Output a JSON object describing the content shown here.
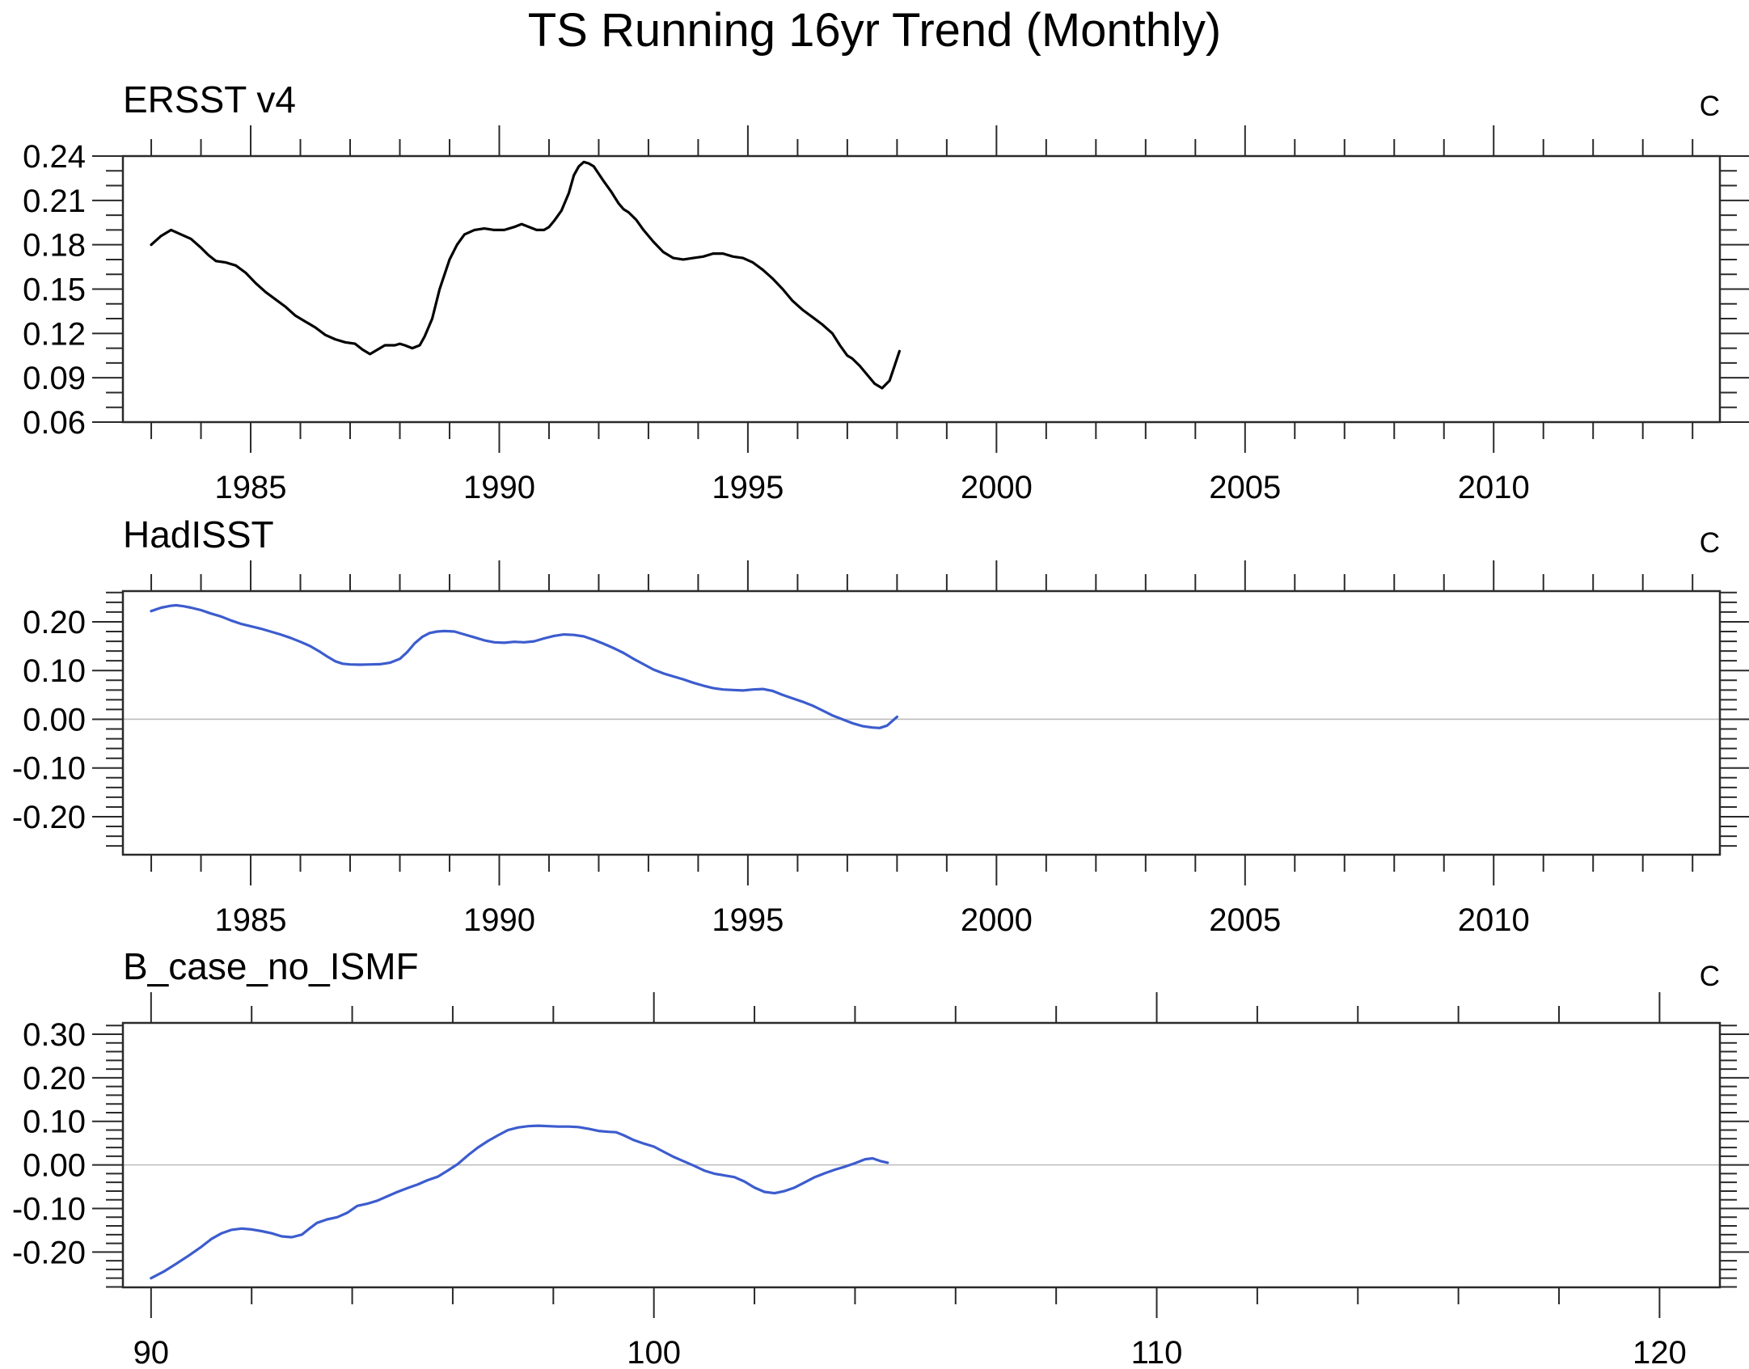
{
  "title": "TS Running 16yr Trend (Monthly)",
  "unit_label": "C",
  "colors": {
    "obs_line_black": "#000000",
    "blue_line": "#3C5CCE",
    "zero_line_gray": "#bcbcbc",
    "axis_color": "#2a2a2a"
  },
  "chart_data": [
    {
      "type": "line",
      "title": "ERSST v4",
      "unit": "C",
      "line_color": "#000000",
      "legend_position": "none",
      "grid": "zero-line-off",
      "x_domain": [
        1982.43,
        2014.55
      ],
      "y_domain": [
        0.06,
        0.24
      ],
      "x_tick_values": [
        1985,
        1990,
        1995,
        2000,
        2005,
        2010
      ],
      "x_tick_labels": [
        "1985",
        "1990",
        "1995",
        "2000",
        "2005",
        "2010"
      ],
      "x_minor_step": 1,
      "x_major_every": 5,
      "y_tick_values": [
        0.06,
        0.09,
        0.12,
        0.15,
        0.18,
        0.21,
        0.24
      ],
      "y_tick_labels": [
        "0.06",
        "0.09",
        "0.12",
        "0.15",
        "0.18",
        "0.21",
        "0.24"
      ],
      "y_minor_step": 0.01,
      "zero_line": false,
      "series": {
        "name": "ERSST v4 16yr running trend",
        "x": [
          1983.0,
          1983.2,
          1983.4,
          1983.6,
          1983.8,
          1984.0,
          1984.15,
          1984.3,
          1984.5,
          1984.7,
          1984.9,
          1985.1,
          1985.3,
          1985.5,
          1985.7,
          1985.9,
          1986.1,
          1986.3,
          1986.5,
          1986.7,
          1986.9,
          1987.1,
          1987.25,
          1987.4,
          1987.5,
          1987.7,
          1987.9,
          1988.0,
          1988.1,
          1988.25,
          1988.4,
          1988.5,
          1988.65,
          1988.8,
          1989.0,
          1989.15,
          1989.3,
          1989.5,
          1989.7,
          1989.9,
          1990.1,
          1990.3,
          1990.45,
          1990.6,
          1990.75,
          1990.9,
          1991.0,
          1991.1,
          1991.25,
          1991.4,
          1991.5,
          1991.6,
          1991.7,
          1991.8,
          1991.9,
          1992.0,
          1992.1,
          1992.25,
          1992.4,
          1992.5,
          1992.6,
          1992.75,
          1992.9,
          1993.1,
          1993.3,
          1993.5,
          1993.7,
          1993.9,
          1994.1,
          1994.3,
          1994.5,
          1994.7,
          1994.9,
          1995.1,
          1995.3,
          1995.5,
          1995.7,
          1995.9,
          1996.1,
          1996.3,
          1996.5,
          1996.7,
          1996.85,
          1997.0,
          1997.1,
          1997.25,
          1997.4,
          1997.55,
          1997.7,
          1997.85,
          1997.95,
          1998.05
        ],
        "y": [
          0.18,
          0.186,
          0.19,
          0.187,
          0.184,
          0.178,
          0.173,
          0.169,
          0.168,
          0.166,
          0.161,
          0.154,
          0.148,
          0.143,
          0.138,
          0.132,
          0.128,
          0.124,
          0.119,
          0.116,
          0.114,
          0.113,
          0.109,
          0.106,
          0.108,
          0.112,
          0.112,
          0.113,
          0.112,
          0.11,
          0.112,
          0.118,
          0.13,
          0.15,
          0.17,
          0.18,
          0.187,
          0.19,
          0.191,
          0.19,
          0.19,
          0.192,
          0.194,
          0.192,
          0.19,
          0.19,
          0.192,
          0.196,
          0.203,
          0.215,
          0.227,
          0.233,
          0.236,
          0.235,
          0.233,
          0.228,
          0.223,
          0.216,
          0.208,
          0.204,
          0.202,
          0.197,
          0.19,
          0.182,
          0.175,
          0.171,
          0.17,
          0.171,
          0.172,
          0.174,
          0.174,
          0.172,
          0.171,
          0.168,
          0.163,
          0.157,
          0.15,
          0.142,
          0.136,
          0.131,
          0.126,
          0.12,
          0.112,
          0.105,
          0.103,
          0.098,
          0.092,
          0.086,
          0.083,
          0.088,
          0.098,
          0.108
        ]
      }
    },
    {
      "type": "line",
      "title": "HadISST",
      "unit": "C",
      "line_color": "#3C5CCE",
      "legend_position": "none",
      "grid": "zero-line-on",
      "x_domain": [
        1982.43,
        2014.55
      ],
      "y_domain": [
        -0.278,
        0.263
      ],
      "x_tick_values": [
        1985,
        1990,
        1995,
        2000,
        2005,
        2010
      ],
      "x_tick_labels": [
        "1985",
        "1990",
        "1995",
        "2000",
        "2005",
        "2010"
      ],
      "x_minor_step": 1,
      "x_major_every": 5,
      "y_tick_values": [
        -0.2,
        -0.1,
        0.0,
        0.1,
        0.2
      ],
      "y_tick_labels": [
        "-0.20",
        "-0.10",
        "0.00",
        "0.10",
        "0.20"
      ],
      "y_minor_step": 0.02,
      "zero_line": true,
      "series": {
        "name": "HadISST 16yr running trend",
        "x": [
          1983.0,
          1983.2,
          1983.4,
          1983.5,
          1983.65,
          1983.8,
          1984.0,
          1984.2,
          1984.4,
          1984.6,
          1984.8,
          1985.0,
          1985.2,
          1985.4,
          1985.6,
          1985.8,
          1986.0,
          1986.2,
          1986.4,
          1986.55,
          1986.7,
          1986.85,
          1987.0,
          1987.2,
          1987.4,
          1987.6,
          1987.8,
          1988.0,
          1988.15,
          1988.3,
          1988.45,
          1988.6,
          1988.75,
          1988.9,
          1989.1,
          1989.3,
          1989.5,
          1989.7,
          1989.9,
          1990.1,
          1990.3,
          1990.5,
          1990.7,
          1990.9,
          1991.1,
          1991.3,
          1991.5,
          1991.7,
          1991.9,
          1992.1,
          1992.3,
          1992.5,
          1992.7,
          1992.9,
          1993.1,
          1993.3,
          1993.5,
          1993.7,
          1993.9,
          1994.1,
          1994.3,
          1994.5,
          1994.7,
          1994.9,
          1995.1,
          1995.3,
          1995.5,
          1995.7,
          1995.9,
          1996.1,
          1996.3,
          1996.5,
          1996.7,
          1996.9,
          1997.1,
          1997.3,
          1997.5,
          1997.65,
          1997.8,
          1997.9,
          1998.0
        ],
        "y": [
          0.222,
          0.229,
          0.233,
          0.234,
          0.232,
          0.229,
          0.224,
          0.217,
          0.211,
          0.203,
          0.196,
          0.191,
          0.186,
          0.18,
          0.174,
          0.167,
          0.159,
          0.15,
          0.138,
          0.128,
          0.119,
          0.114,
          0.1125,
          0.112,
          0.1125,
          0.113,
          0.116,
          0.124,
          0.138,
          0.156,
          0.169,
          0.177,
          0.18,
          0.181,
          0.18,
          0.174,
          0.168,
          0.162,
          0.158,
          0.157,
          0.159,
          0.158,
          0.16,
          0.166,
          0.171,
          0.174,
          0.173,
          0.17,
          0.163,
          0.155,
          0.146,
          0.136,
          0.124,
          0.113,
          0.102,
          0.094,
          0.088,
          0.082,
          0.075,
          0.069,
          0.064,
          0.061,
          0.06,
          0.059,
          0.061,
          0.062,
          0.058,
          0.05,
          0.043,
          0.036,
          0.028,
          0.018,
          0.008,
          0.0,
          -0.008,
          -0.014,
          -0.017,
          -0.018,
          -0.013,
          -0.004,
          0.005
        ]
      }
    },
    {
      "type": "line",
      "title": "B_case_no_ISMF",
      "unit": "C",
      "line_color": "#3C5CCE",
      "legend_position": "none",
      "grid": "zero-line-on",
      "x_domain": [
        89.44,
        121.2
      ],
      "y_domain": [
        -0.281,
        0.326
      ],
      "x_tick_values": [
        90,
        100,
        110,
        120
      ],
      "x_tick_labels": [
        "90",
        "100",
        "110",
        "120"
      ],
      "x_minor_step": 2,
      "x_major_every": 10,
      "y_tick_values": [
        -0.2,
        -0.1,
        0.0,
        0.1,
        0.2,
        0.3
      ],
      "y_tick_labels": [
        "-0.20",
        "-0.10",
        "0.00",
        "0.10",
        "0.20",
        "0.30"
      ],
      "y_minor_step": 0.02,
      "zero_line": true,
      "series": {
        "name": "B_case_no_ISMF 16yr running trend",
        "x": [
          90.0,
          90.25,
          90.5,
          90.75,
          91.0,
          91.2,
          91.4,
          91.6,
          91.8,
          92.0,
          92.2,
          92.4,
          92.6,
          92.8,
          93.0,
          93.15,
          93.3,
          93.5,
          93.7,
          93.9,
          94.1,
          94.3,
          94.5,
          94.7,
          94.9,
          95.1,
          95.3,
          95.5,
          95.7,
          95.9,
          96.1,
          96.3,
          96.5,
          96.7,
          96.9,
          97.1,
          97.3,
          97.5,
          97.7,
          97.9,
          98.1,
          98.3,
          98.5,
          98.7,
          98.9,
          99.1,
          99.25,
          99.4,
          99.6,
          99.8,
          100.0,
          100.2,
          100.4,
          100.6,
          100.8,
          101.0,
          101.2,
          101.4,
          101.6,
          101.8,
          102.0,
          102.2,
          102.4,
          102.6,
          102.8,
          103.0,
          103.2,
          103.4,
          103.6,
          103.8,
          104.0,
          104.2,
          104.35,
          104.5,
          104.65
        ],
        "y": [
          -0.26,
          -0.245,
          -0.227,
          -0.208,
          -0.188,
          -0.17,
          -0.157,
          -0.149,
          -0.146,
          -0.148,
          -0.152,
          -0.157,
          -0.164,
          -0.166,
          -0.16,
          -0.146,
          -0.133,
          -0.125,
          -0.12,
          -0.11,
          -0.094,
          -0.089,
          -0.082,
          -0.072,
          -0.062,
          -0.053,
          -0.045,
          -0.035,
          -0.027,
          -0.013,
          0.002,
          0.022,
          0.04,
          0.055,
          0.068,
          0.08,
          0.086,
          0.089,
          0.09,
          0.089,
          0.088,
          0.088,
          0.087,
          0.083,
          0.078,
          0.076,
          0.075,
          0.068,
          0.057,
          0.049,
          0.042,
          0.03,
          0.018,
          0.008,
          -0.002,
          -0.013,
          -0.02,
          -0.024,
          -0.028,
          -0.038,
          -0.052,
          -0.062,
          -0.065,
          -0.06,
          -0.052,
          -0.04,
          -0.028,
          -0.019,
          -0.011,
          -0.004,
          0.004,
          0.013,
          0.015,
          0.009,
          0.005
        ]
      }
    }
  ]
}
